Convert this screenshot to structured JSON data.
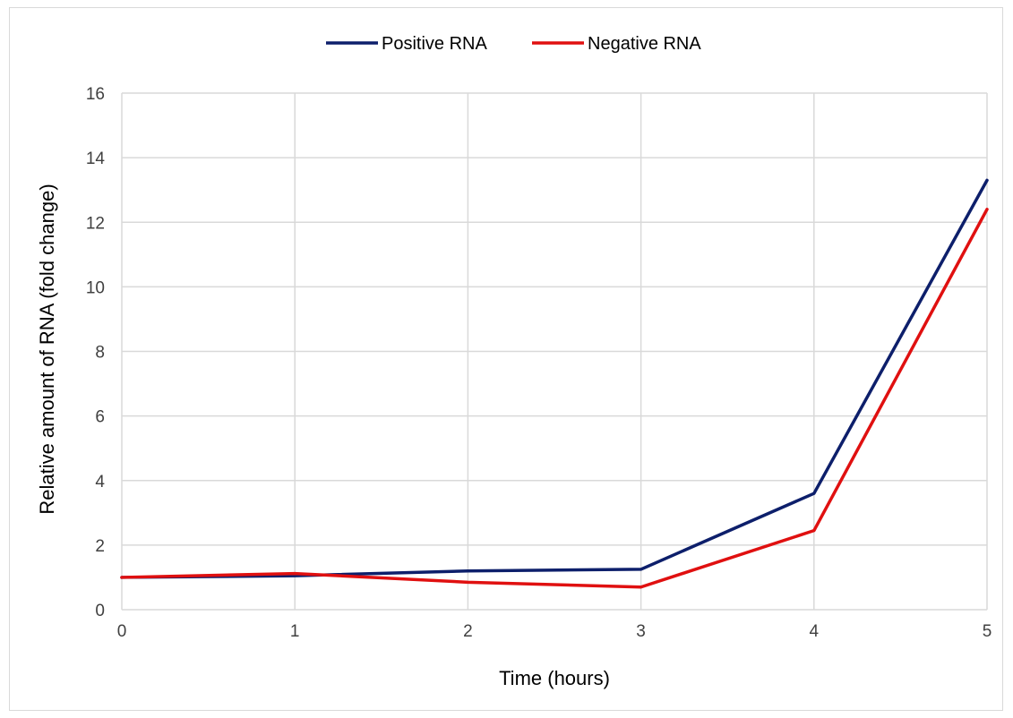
{
  "chart_data": {
    "type": "line",
    "title": "",
    "xlabel": "Time (hours)",
    "ylabel": "Relative amount of RNA  (fold change)",
    "x": [
      0,
      1,
      2,
      3,
      4,
      5
    ],
    "xlim": [
      0,
      5
    ],
    "ylim": [
      0,
      16
    ],
    "x_ticks": [
      "0",
      "1",
      "2",
      "3",
      "4",
      "5"
    ],
    "y_ticks": [
      "0",
      "2",
      "4",
      "6",
      "8",
      "10",
      "12",
      "14",
      "16"
    ],
    "grid": true,
    "legend_position": "top-center",
    "series": [
      {
        "name": "Positive RNA",
        "color": "#0d1f6b",
        "values": [
          1.0,
          1.05,
          1.2,
          1.25,
          3.6,
          13.3
        ]
      },
      {
        "name": "Negative RNA",
        "color": "#e01010",
        "values": [
          1.0,
          1.12,
          0.85,
          0.7,
          2.45,
          12.4
        ]
      }
    ]
  }
}
